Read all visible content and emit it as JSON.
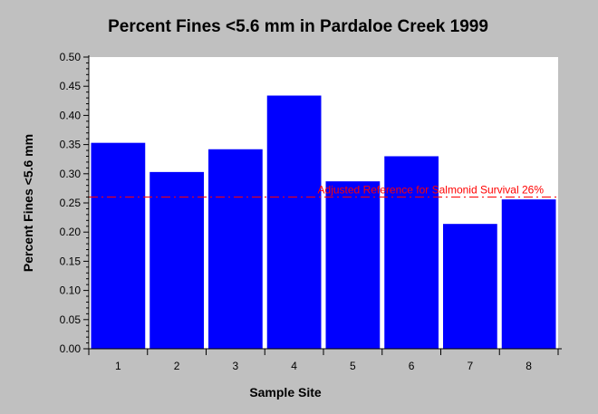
{
  "chart_data": {
    "type": "bar",
    "title": "Percent Fines <5.6 mm in Pardaloe Creek 1999",
    "xlabel": "Sample Site",
    "ylabel": "Percent Fines <5.6 mm",
    "categories": [
      "1",
      "2",
      "3",
      "4",
      "5",
      "6",
      "7",
      "8"
    ],
    "values": [
      0.353,
      0.303,
      0.342,
      0.434,
      0.287,
      0.33,
      0.214,
      0.256
    ],
    "ylim": [
      0,
      0.5
    ],
    "yticks": [
      "0.00",
      "0.05",
      "0.10",
      "0.15",
      "0.20",
      "0.25",
      "0.30",
      "0.35",
      "0.40",
      "0.45",
      "0.50"
    ],
    "reference_line": {
      "value": 0.26,
      "label": "Adjusted Reference for Salmonid Survival 26%",
      "color": "#ff0000"
    },
    "bar_color": "#0000ff",
    "plot_background": "#ffffff",
    "page_background": "#c0c0c0",
    "grid": false,
    "legend": "none"
  }
}
